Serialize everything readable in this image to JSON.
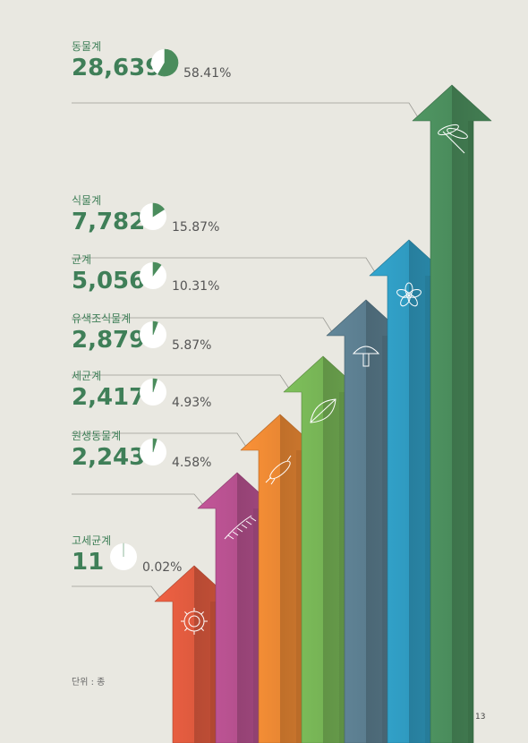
{
  "chart_data": {
    "type": "bar",
    "categories": [
      "고세균계",
      "원생동물계",
      "세균계",
      "유색조식물계",
      "균계",
      "식물계",
      "동물계"
    ],
    "series": [
      {
        "values": [
          11,
          2243,
          2417,
          2879,
          5056,
          7782,
          28639
        ],
        "counts_text": [
          "11",
          "2,243",
          "2,417",
          "2,879",
          "5,056",
          "7,782",
          "28,639"
        ],
        "percent": [
          0.02,
          4.58,
          4.93,
          5.87,
          10.31,
          15.87,
          58.41
        ],
        "percent_text": [
          "0.02%",
          "4.58%",
          "4.93%",
          "5.87%",
          "10.31%",
          "15.87%",
          "58.41%"
        ]
      }
    ],
    "colors": [
      "#de5a3e",
      "#b5508e",
      "#e98733",
      "#76b355",
      "#5b7d8f",
      "#2f9ac0",
      "#4a8c5c"
    ],
    "icons": [
      "microbe-icon",
      "fern-leaf-icon",
      "bacterium-icon",
      "leaf-icon",
      "mushroom-icon",
      "flower-icon",
      "dragonfly-icon"
    ],
    "pie_color": "#4a8c5c"
  },
  "unit_note": "단위 : 종",
  "page_number": "13"
}
